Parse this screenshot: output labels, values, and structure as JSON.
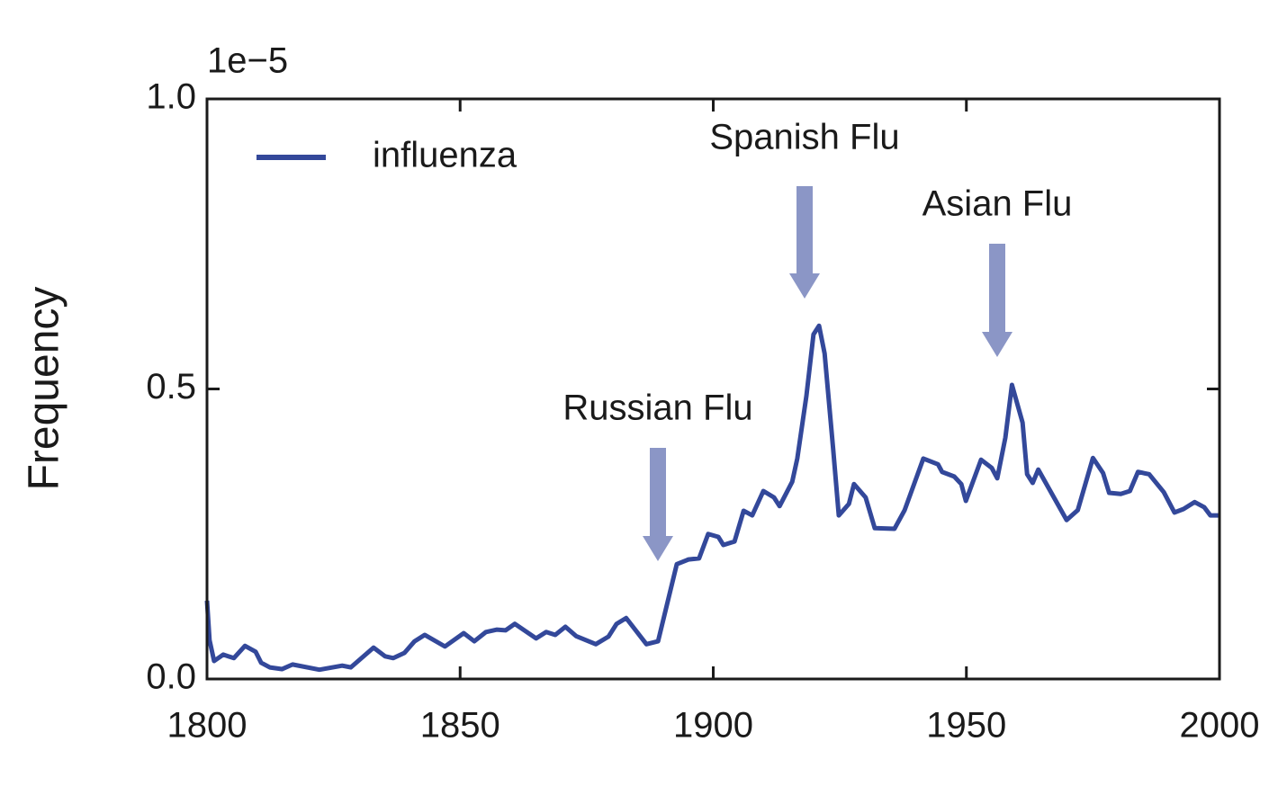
{
  "chart_data": {
    "type": "line",
    "y_label": "Frequency",
    "y_offset_label": "1e−5",
    "xlim": [
      1800,
      2000
    ],
    "ylim": [
      0,
      1
    ],
    "xticks": [
      1800,
      1850,
      1900,
      1950,
      2000
    ],
    "yticks": [
      {
        "value": 0,
        "label": "0.0"
      },
      0.5,
      {
        "value": 1,
        "label": "1.0"
      }
    ],
    "legend": "upper left",
    "x": [
      1800,
      1800.5,
      1801.4,
      1803.2,
      1805.3,
      1807.5,
      1809.6,
      1810.7,
      1812.4,
      1814.8,
      1816.9,
      1822.2,
      1826.7,
      1828.4,
      1832.9,
      1835.2,
      1836.8,
      1839,
      1841,
      1843,
      1847,
      1850.7,
      1852.8,
      1855.1,
      1857.2,
      1859,
      1860.8,
      1865,
      1867,
      1868.8,
      1870.8,
      1872.9,
      1876.8,
      1879.3,
      1880.9,
      1882.8,
      1886.8,
      1889.1,
      1892.8,
      1895.1,
      1897.2,
      1899,
      1901,
      1902,
      1904.2,
      1906,
      1907.7,
      1909.9,
      1912,
      1913.1,
      1915.6,
      1916.6,
      1918.4,
      1919.8,
      1920.9,
      1922,
      1923.7,
      1924.8,
      1926.8,
      1927.8,
      1930.1,
      1931.9,
      1935.8,
      1937.8,
      1941.5,
      1944.4,
      1945.2,
      1947.6,
      1949,
      1949.9,
      1952.9,
      1955,
      1956.1,
      1957.7,
      1959,
      1960,
      1961.1,
      1962,
      1963.1,
      1964.2,
      1969.8,
      1972,
      1975,
      1977,
      1978.2,
      1980.5,
      1982.3,
      1983.9,
      1986.1,
      1989,
      1991.1,
      1992.9,
      1995.1,
      1997,
      1998.2,
      2000
    ],
    "series": [
      {
        "name": "influenza",
        "color": "#33489a",
        "values": [
          0.135,
          0.067,
          0.031,
          0.042,
          0.036,
          0.057,
          0.047,
          0.028,
          0.02,
          0.017,
          0.025,
          0.016,
          0.023,
          0.02,
          0.054,
          0.039,
          0.036,
          0.045,
          0.065,
          0.076,
          0.056,
          0.079,
          0.065,
          0.081,
          0.085,
          0.084,
          0.095,
          0.07,
          0.081,
          0.076,
          0.09,
          0.074,
          0.06,
          0.073,
          0.095,
          0.105,
          0.06,
          0.065,
          0.198,
          0.206,
          0.208,
          0.25,
          0.245,
          0.231,
          0.237,
          0.29,
          0.282,
          0.324,
          0.313,
          0.298,
          0.34,
          0.38,
          0.488,
          0.594,
          0.609,
          0.561,
          0.395,
          0.282,
          0.302,
          0.336,
          0.313,
          0.26,
          0.259,
          0.291,
          0.38,
          0.37,
          0.357,
          0.349,
          0.336,
          0.307,
          0.378,
          0.364,
          0.346,
          0.416,
          0.507,
          0.476,
          0.442,
          0.353,
          0.338,
          0.361,
          0.274,
          0.291,
          0.381,
          0.355,
          0.321,
          0.319,
          0.324,
          0.357,
          0.353,
          0.322,
          0.287,
          0.293,
          0.305,
          0.296,
          0.282,
          0.282
        ]
      }
    ],
    "annotations": [
      {
        "text": "Russian Flu"
      },
      {
        "text": "Spanish Flu"
      },
      {
        "text": "Asian Flu"
      }
    ]
  }
}
